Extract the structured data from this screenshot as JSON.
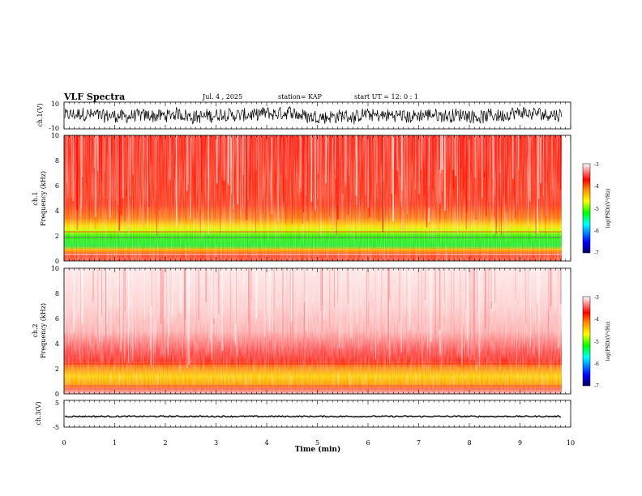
{
  "header": {
    "title": "VLF Spectra",
    "date": "Jul. 4 , 2025",
    "station": "station= KAP",
    "start": "start UT = 12: 0 : 1"
  },
  "panels": {
    "ch1": {
      "ylabel": "ch.1(V)",
      "ticks": [
        "10",
        "-10"
      ],
      "ylim": [
        -10,
        10
      ]
    },
    "spec1": {
      "ylabel_top": "ch.1",
      "ylabel_bottom": "Frequency (kHz)",
      "ticks": [
        "10",
        "8",
        "6",
        "4",
        "2",
        "0"
      ],
      "ylim": [
        0,
        10
      ]
    },
    "spec2": {
      "ylabel_top": "ch.2",
      "ylabel_bottom": "Frequency (kHz)",
      "ticks": [
        "10",
        "8",
        "6",
        "4",
        "2",
        "0"
      ],
      "ylim": [
        0,
        10
      ]
    },
    "ch3": {
      "ylabel": "ch.3(V)",
      "ticks": [
        "5",
        "-5"
      ],
      "ylim": [
        -5,
        5
      ]
    }
  },
  "colorbar": {
    "label": "log(PSD)(V²/Hz)",
    "ticks": [
      "-3",
      "-4",
      "-5",
      "-6",
      "-7"
    ],
    "range": [
      -7,
      -3
    ],
    "colors": [
      "#000080",
      "#0000ff",
      "#00ffff",
      "#00ff00",
      "#ffff00",
      "#ff8000",
      "#ff0000",
      "#ffffff"
    ]
  },
  "xaxis": {
    "label": "Time (min)",
    "ticks": [
      "0",
      "1",
      "2",
      "3",
      "4",
      "5",
      "6",
      "7",
      "8",
      "9",
      "10"
    ],
    "xlim": [
      0,
      10
    ],
    "data_end": 9.83
  },
  "chart_data": [
    {
      "type": "line",
      "title": "",
      "ylabel": "ch.1(V)",
      "xlabel": "",
      "xlim": [
        0,
        10
      ],
      "ylim": [
        -10,
        10
      ],
      "series": [
        {
          "values_summary": "noisy waveform roughly between -8 and 8 V, centered near 0"
        }
      ]
    },
    {
      "type": "heatmap",
      "ylabel": "ch.1 Frequency (kHz)",
      "xlim": [
        0,
        10
      ],
      "ylim": [
        0,
        10
      ],
      "bands": [
        {
          "freq_range_khz": [
            4,
            10
          ],
          "dominant_color": "red",
          "log_psd": -3.5
        },
        {
          "freq_range_khz": [
            2.5,
            4
          ],
          "dominant_color": "orange-yellow",
          "log_psd": -4.3
        },
        {
          "freq_range_khz": [
            1,
            2.5
          ],
          "dominant_color": "green",
          "log_psd": -5.0
        },
        {
          "freq_range_khz": [
            0,
            1
          ],
          "dominant_color": "orange-red",
          "log_psd": -4.0
        }
      ],
      "colorbar_label": "log(PSD)(V²/Hz)",
      "colorbar_range": [
        -7,
        -3
      ]
    },
    {
      "type": "heatmap",
      "ylabel": "ch.2 Frequency (kHz)",
      "xlim": [
        0,
        10
      ],
      "ylim": [
        0,
        10
      ],
      "bands": [
        {
          "freq_range_khz": [
            5,
            10
          ],
          "dominant_color": "light red / white",
          "log_psd": -3.1
        },
        {
          "freq_range_khz": [
            3,
            5
          ],
          "dominant_color": "red",
          "log_psd": -3.4
        },
        {
          "freq_range_khz": [
            0.5,
            3
          ],
          "dominant_color": "yellow-orange",
          "log_psd": -4.2
        }
      ],
      "colorbar_label": "log(PSD)(V²/Hz)",
      "colorbar_range": [
        -7,
        -3
      ]
    },
    {
      "type": "line",
      "ylabel": "ch.3(V)",
      "xlabel": "Time (min)",
      "xlim": [
        0,
        10
      ],
      "ylim": [
        -5,
        5
      ],
      "series": [
        {
          "values_summary": "near-constant around -1 V with small jitter"
        }
      ]
    }
  ]
}
